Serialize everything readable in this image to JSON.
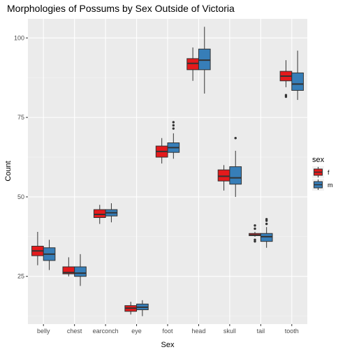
{
  "chart_data": {
    "type": "boxplot",
    "title": "Morphologies of Possums by Sex Outside of Victoria",
    "xlabel": "Sex",
    "ylabel": "Count",
    "categories": [
      "belly",
      "chest",
      "earconch",
      "eye",
      "foot",
      "head",
      "skull",
      "tail",
      "tooth"
    ],
    "ylim": [
      10,
      106
    ],
    "yticks": [
      25,
      50,
      75,
      100
    ],
    "grid": true,
    "legend": {
      "title": "sex",
      "position": "right",
      "entries": [
        "f",
        "m"
      ]
    },
    "series": [
      {
        "name": "f",
        "color": "#e41a1c",
        "boxes": [
          {
            "q1": 31.5,
            "median": 33.0,
            "q3": 34.5,
            "whisker_low": 28.5,
            "whisker_high": 39.0,
            "outliers": []
          },
          {
            "q1": 25.8,
            "median": 26.2,
            "q3": 28.0,
            "whisker_low": 25.0,
            "whisker_high": 31.0,
            "outliers": []
          },
          {
            "q1": 43.5,
            "median": 44.5,
            "q3": 46.0,
            "whisker_low": 41.5,
            "whisker_high": 47.5,
            "outliers": []
          },
          {
            "q1": 14.0,
            "median": 15.0,
            "q3": 15.8,
            "whisker_low": 13.0,
            "whisker_high": 17.0,
            "outliers": []
          },
          {
            "q1": 62.5,
            "median": 64.3,
            "q3": 66.0,
            "whisker_low": 60.5,
            "whisker_high": 68.5,
            "outliers": []
          },
          {
            "q1": 90.0,
            "median": 92.0,
            "q3": 93.5,
            "whisker_low": 86.5,
            "whisker_high": 97.0,
            "outliers": []
          },
          {
            "q1": 55.0,
            "median": 56.5,
            "q3": 58.5,
            "whisker_low": 52.0,
            "whisker_high": 60.0,
            "outliers": []
          },
          {
            "q1": 37.8,
            "median": 38.0,
            "q3": 38.5,
            "whisker_low": 37.5,
            "whisker_high": 39.0,
            "outliers": [
              36.0,
              36.5,
              40.0,
              41.0
            ]
          },
          {
            "q1": 86.5,
            "median": 88.0,
            "q3": 89.5,
            "whisker_low": 84.5,
            "whisker_high": 93.0,
            "outliers": [
              82.0,
              81.5
            ]
          }
        ]
      },
      {
        "name": "m",
        "color": "#377eb8",
        "boxes": [
          {
            "q1": 30.0,
            "median": 32.0,
            "q3": 34.0,
            "whisker_low": 27.0,
            "whisker_high": 36.5,
            "outliers": []
          },
          {
            "q1": 25.0,
            "median": 26.0,
            "q3": 28.0,
            "whisker_low": 22.0,
            "whisker_high": 32.0,
            "outliers": []
          },
          {
            "q1": 44.0,
            "median": 45.0,
            "q3": 46.0,
            "whisker_low": 42.0,
            "whisker_high": 48.0,
            "outliers": []
          },
          {
            "q1": 14.5,
            "median": 15.3,
            "q3": 16.3,
            "whisker_low": 12.5,
            "whisker_high": 17.5,
            "outliers": []
          },
          {
            "q1": 64.0,
            "median": 65.5,
            "q3": 67.0,
            "whisker_low": 62.0,
            "whisker_high": 70.0,
            "outliers": [
              71.5,
              72.5,
              73.5
            ]
          },
          {
            "q1": 90.0,
            "median": 93.0,
            "q3": 96.5,
            "whisker_low": 82.5,
            "whisker_high": 103.5,
            "outliers": []
          },
          {
            "q1": 54.0,
            "median": 56.0,
            "q3": 59.5,
            "whisker_low": 50.0,
            "whisker_high": 64.5,
            "outliers": [
              68.5
            ]
          },
          {
            "q1": 36.0,
            "median": 37.5,
            "q3": 38.5,
            "whisker_low": 34.0,
            "whisker_high": 40.5,
            "outliers": [
              41.5,
              42.5,
              43.0
            ]
          },
          {
            "q1": 83.5,
            "median": 85.5,
            "q3": 89.0,
            "whisker_low": 80.5,
            "whisker_high": 96.0,
            "outliers": []
          }
        ]
      }
    ]
  }
}
